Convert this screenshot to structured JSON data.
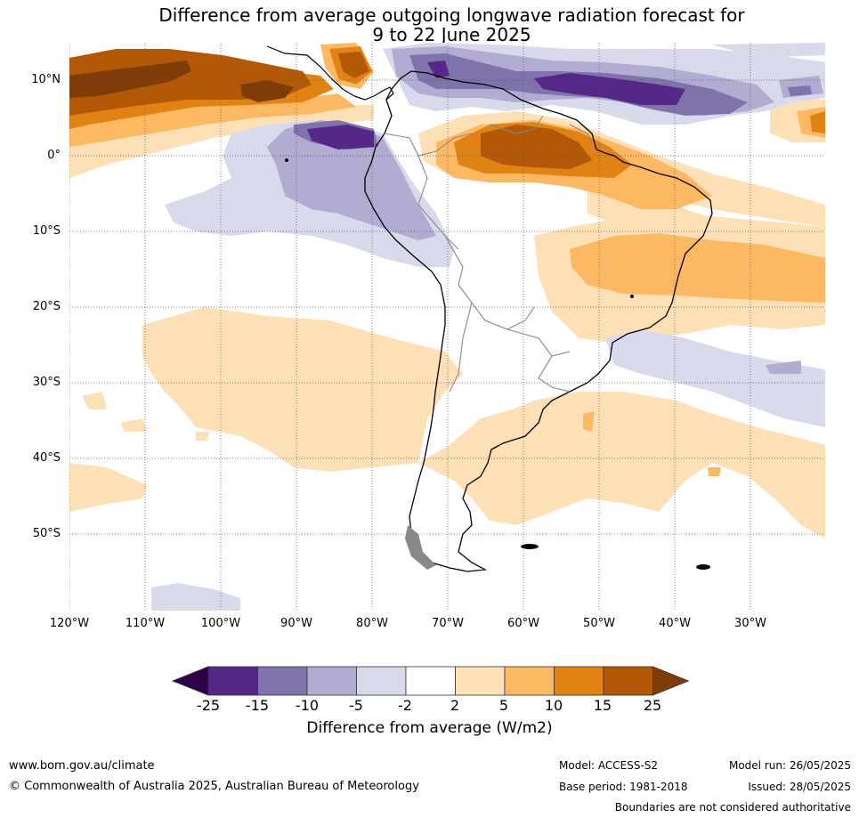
{
  "title": {
    "line1": "Difference from average outgoing longwave radiation forecast for",
    "line2": "9 to 22 June 2025"
  },
  "map": {
    "lat_labels": [
      "10°N",
      "0°",
      "10°S",
      "20°S",
      "30°S",
      "40°S",
      "50°S"
    ],
    "lon_labels": [
      "120°W",
      "110°W",
      "100°W",
      "90°W",
      "80°W",
      "70°W",
      "60°W",
      "50°W",
      "40°W",
      "30°W"
    ]
  },
  "colorbar": {
    "ticks": [
      "-25",
      "-15",
      "-10",
      "-5",
      "-2",
      "2",
      "5",
      "10",
      "15",
      "25"
    ],
    "colors": [
      "#2d004b",
      "#542788",
      "#8073ac",
      "#b2abd2",
      "#d8daeb",
      "#ffffff",
      "#fee0b6",
      "#fdb863",
      "#e08214",
      "#b35806",
      "#7f3b08"
    ],
    "label": "Difference from average (W/m2)"
  },
  "footer": {
    "website": "www.bom.gov.au/climate",
    "copyright": "© Commonwealth of Australia 2025, Australian Bureau of Meteorology",
    "model": "Model: ACCESS-S2",
    "base_period": "Base period: 1981-2018",
    "model_run": "Model run: 26/05/2025",
    "issued": "Issued: 28/05/2025",
    "disclaimer": "Boundaries are not considered authoritative"
  }
}
